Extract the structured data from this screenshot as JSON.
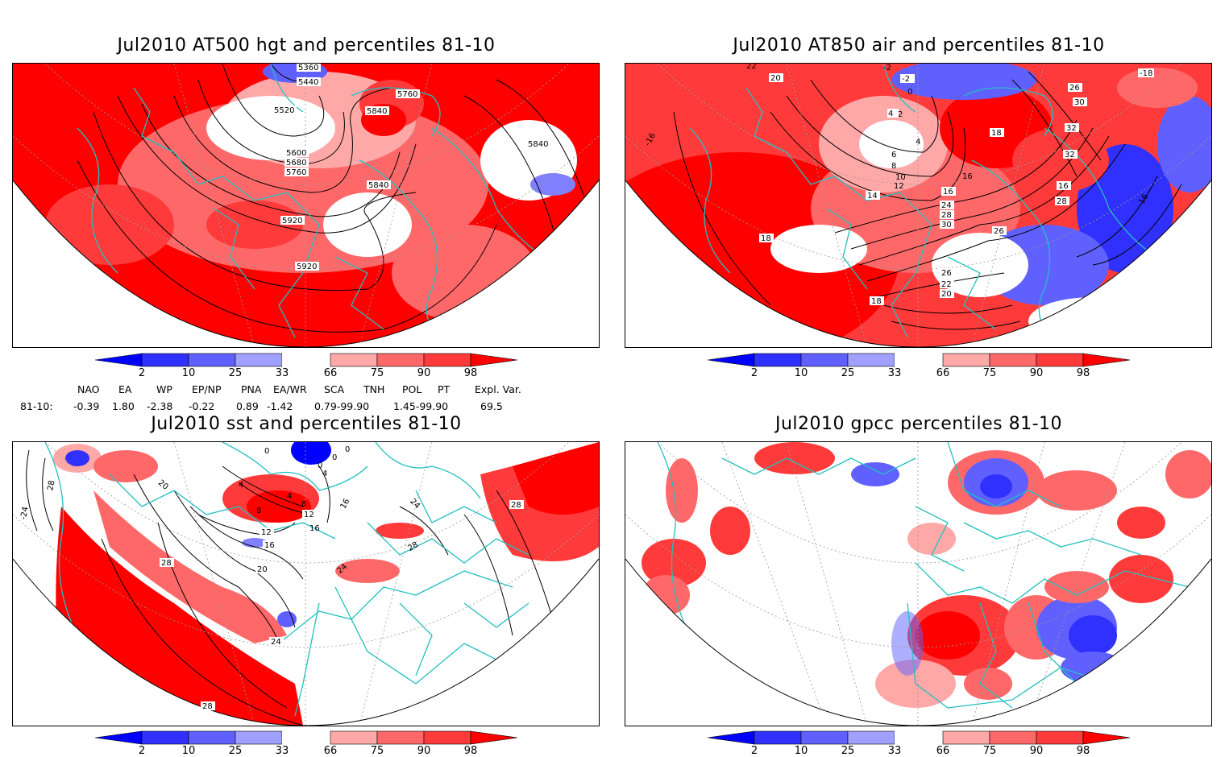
{
  "panels": [
    {
      "title": "Jul2010 AT500 hgt and percentiles 81-10",
      "contour_labels": [
        "5360",
        "5440",
        "5520",
        "5600",
        "5680",
        "5760",
        "5760",
        "5840",
        "5840",
        "5840",
        "5920",
        "5920"
      ]
    },
    {
      "title": "Jul2010 AT850 air and percentiles 81-10",
      "contour_labels": [
        "22",
        "20",
        "-2",
        "-2",
        "0",
        "2",
        "4",
        "4",
        "6",
        "8",
        "10",
        "12",
        "14",
        "16",
        "16",
        "18",
        "18",
        "18",
        "20",
        "22",
        "24",
        "26",
        "26",
        "26",
        "28",
        "28",
        "30",
        "30",
        "32",
        "32",
        "-18",
        "-16",
        "16",
        "16"
      ]
    },
    {
      "title": "Jul2010 sst and percentiles 81-10",
      "contour_labels": [
        "28",
        "-24",
        "20",
        "0",
        "0",
        "0",
        "4",
        "4",
        "4",
        "8",
        "8",
        "12",
        "12",
        "16",
        "16",
        "16",
        "20",
        "24",
        "24",
        "24",
        "28",
        "28",
        "28",
        "28",
        "0"
      ]
    },
    {
      "title": "Jul2010 gpcc percentiles 81-10",
      "contour_labels": []
    }
  ],
  "colorbar": {
    "labels": [
      "2",
      "10",
      "25",
      "33",
      "66",
      "75",
      "90",
      "98"
    ],
    "colors": {
      "below2": "#0000ff",
      "b10": "#3030ff",
      "b25": "#6060ff",
      "b33": "#a0a0ff",
      "neutral": "#ffffff",
      "a66": "#ffa8a8",
      "a75": "#ff6868",
      "a90": "#ff3a3a",
      "above98": "#ff0000"
    }
  },
  "indices": {
    "headers": [
      "NAO",
      "EA",
      "WP",
      "EP/NP",
      "PNA",
      "EA/WR",
      "SCA",
      "TNH",
      "POL",
      "PT",
      "Expl. Var."
    ],
    "row_label": "81-10:",
    "values": [
      "-0.39",
      "1.80",
      "-2.38",
      "-0.22",
      "0.89",
      "-1.42",
      "0.79-99.90",
      "1.45-99.90",
      "69.5"
    ]
  },
  "map_colors": {
    "coast": "#22c0c0",
    "contour": "#000000",
    "graticule": "#888888"
  }
}
